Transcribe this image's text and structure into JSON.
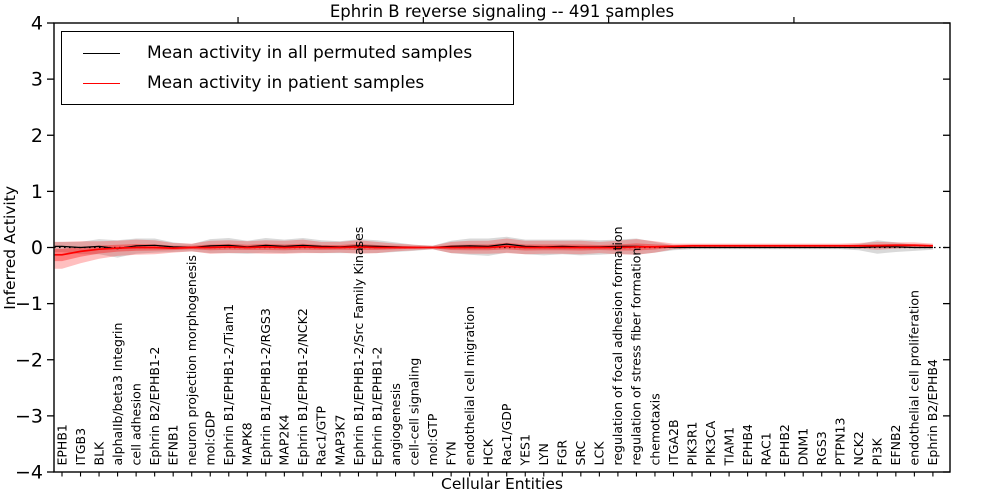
{
  "figure": {
    "title": "Ephrin B reverse signaling -- 491 samples"
  },
  "axes": {
    "x_label": "Cellular Entities",
    "y_label": "Inferred Activity"
  },
  "legend": {
    "position": "upper left",
    "items": [
      {
        "label": "Mean activity in all permuted samples",
        "color": "#000000"
      },
      {
        "label": "Mean activity in patient samples",
        "color": "#ff0000"
      }
    ]
  },
  "chart_data": {
    "type": "line",
    "title": "Ephrin B reverse signaling -- 491 samples",
    "xlabel": "Cellular Entities",
    "ylabel": "Inferred Activity",
    "ylim": [
      -4,
      4
    ],
    "grid": false,
    "legend_position": "upper left",
    "zero_reference_line": {
      "y": 0,
      "style": "dotted",
      "color": "#000000"
    },
    "yticks": [
      {
        "value": 4,
        "label": "4"
      },
      {
        "value": 3,
        "label": "3"
      },
      {
        "value": 2,
        "label": "2"
      },
      {
        "value": 1,
        "label": "1"
      },
      {
        "value": 0,
        "label": "0"
      },
      {
        "value": -1,
        "label": "−1"
      },
      {
        "value": -2,
        "label": "−2"
      },
      {
        "value": -3,
        "label": "−3"
      },
      {
        "value": -4,
        "label": "−4"
      }
    ],
    "categories": [
      "EPHB1",
      "ITGB3",
      "BLK",
      "alphaIIb/beta3 Integrin",
      "cell adhesion",
      "Ephrin B2/EPHB1-2",
      "EFNB1",
      "neuron projection morphogenesis",
      "mol:GDP",
      "Ephrin B1/EPHB1-2/Tiam1",
      "MAPK8",
      "Ephrin B1/EPHB1-2/RGS3",
      "MAP2K4",
      "Ephrin B1/EPHB1-2/NCK2",
      "Rac1/GTP",
      "MAP3K7",
      "Ephrin B1/EPHB1-2/Src Family Kinases",
      "Ephrin B1/EPHB1-2",
      "angiogenesis",
      "cell-cell signaling",
      "mol:GTP",
      "FYN",
      "endothelial cell migration",
      "HCK",
      "Rac1/GDP",
      "YES1",
      "LYN",
      "FGR",
      "SRC",
      "LCK",
      "regulation of focal adhesion formation",
      "regulation of stress fiber formation",
      "chemotaxis",
      "ITGA2B",
      "PIK3R1",
      "PIK3CA",
      "TIAM1",
      "EPHB4",
      "RAC1",
      "EPHB2",
      "DNM1",
      "RGS3",
      "PTPN13",
      "NCK2",
      "PI3K",
      "EFNB2",
      "endothelial cell proliferation",
      "Ephrin B2/EPHB4"
    ],
    "series": [
      {
        "name": "Mean activity in all permuted samples",
        "color": "#000000",
        "style": "solid",
        "values": [
          0.02,
          0,
          0.02,
          -0.02,
          0.03,
          0.04,
          0.01,
          0,
          0.03,
          0.04,
          0.01,
          0.04,
          0.02,
          0.04,
          0.02,
          0.01,
          0.03,
          0.02,
          0.01,
          0,
          0,
          0.02,
          0.03,
          0.02,
          0.06,
          0.02,
          0.01,
          0.02,
          0.01,
          0.01,
          0.02,
          0.02,
          0.01,
          0,
          0,
          0,
          0,
          0,
          0,
          0,
          0,
          0,
          0,
          0,
          0.01,
          0.01,
          0,
          0
        ]
      },
      {
        "name": "Mean activity in patient samples",
        "color": "#ff0000",
        "style": "solid",
        "values": [
          -0.13,
          -0.07,
          -0.03,
          -0.01,
          0,
          0,
          -0.01,
          0,
          0,
          0.01,
          0,
          0.01,
          0,
          0.01,
          0,
          0,
          0.01,
          0,
          0,
          0,
          0,
          0,
          0,
          0,
          0.02,
          0,
          0,
          0,
          0,
          0,
          0,
          0.01,
          0.01,
          0.02,
          0.03,
          0.03,
          0.03,
          0.03,
          0.03,
          0.03,
          0.03,
          0.03,
          0.03,
          0.03,
          0.03,
          0.04,
          0.04,
          0.03
        ]
      }
    ],
    "bands": [
      {
        "name": "permuted-samples-envelope",
        "color": "rgba(0,0,0,0.15)",
        "upper": [
          0.1,
          0.1,
          0.15,
          0.13,
          0.16,
          0.16,
          0.09,
          0.06,
          0.15,
          0.17,
          0.12,
          0.17,
          0.14,
          0.17,
          0.13,
          0.11,
          0.15,
          0.13,
          0.09,
          0.05,
          0.03,
          0.12,
          0.16,
          0.16,
          0.19,
          0.14,
          0.14,
          0.14,
          0.14,
          0.13,
          0.14,
          0.16,
          0.1,
          0.04,
          0.03,
          0.03,
          0.03,
          0.03,
          0.03,
          0.03,
          0.03,
          0.03,
          0.03,
          0.06,
          0.13,
          0.09,
          0.05,
          0.04
        ],
        "lower": [
          -0.08,
          -0.12,
          -0.12,
          -0.18,
          -0.11,
          -0.09,
          -0.08,
          -0.07,
          -0.1,
          -0.1,
          -0.11,
          -0.09,
          -0.1,
          -0.09,
          -0.1,
          -0.1,
          -0.1,
          -0.1,
          -0.08,
          -0.06,
          -0.03,
          -0.1,
          -0.13,
          -0.15,
          -0.09,
          -0.12,
          -0.14,
          -0.12,
          -0.14,
          -0.13,
          -0.11,
          -0.13,
          -0.09,
          -0.05,
          -0.03,
          -0.03,
          -0.03,
          -0.03,
          -0.03,
          -0.03,
          -0.03,
          -0.03,
          -0.03,
          -0.05,
          -0.11,
          -0.08,
          -0.06,
          -0.04
        ]
      },
      {
        "name": "patient-samples-envelope",
        "color": "rgba(255,0,0,0.25)",
        "inner_color": "rgba(255,0,0,0.35)",
        "inner_scale": 0.45,
        "upper": [
          0.1,
          0.11,
          0.11,
          0.12,
          0.14,
          0.13,
          0.08,
          0.07,
          0.12,
          0.13,
          0.11,
          0.13,
          0.12,
          0.14,
          0.1,
          0.1,
          0.13,
          0.1,
          0.07,
          0.05,
          0.03,
          0.1,
          0.12,
          0.12,
          0.16,
          0.12,
          0.12,
          0.12,
          0.12,
          0.1,
          0.12,
          0.15,
          0.11,
          0.07,
          0.07,
          0.07,
          0.07,
          0.07,
          0.07,
          0.07,
          0.07,
          0.07,
          0.07,
          0.08,
          0.1,
          0.09,
          0.09,
          0.07
        ],
        "lower": [
          -0.38,
          -0.28,
          -0.2,
          -0.15,
          -0.13,
          -0.12,
          -0.09,
          -0.07,
          -0.11,
          -0.1,
          -0.1,
          -0.11,
          -0.11,
          -0.1,
          -0.1,
          -0.09,
          -0.11,
          -0.1,
          -0.07,
          -0.05,
          -0.03,
          -0.1,
          -0.11,
          -0.11,
          -0.1,
          -0.12,
          -0.11,
          -0.11,
          -0.12,
          -0.1,
          -0.12,
          -0.13,
          -0.09,
          -0.03,
          -0.01,
          -0.01,
          -0.01,
          -0.01,
          -0.01,
          -0.01,
          -0.01,
          -0.01,
          -0.01,
          -0.02,
          -0.04,
          -0.02,
          -0.01,
          -0.01
        ]
      }
    ]
  }
}
